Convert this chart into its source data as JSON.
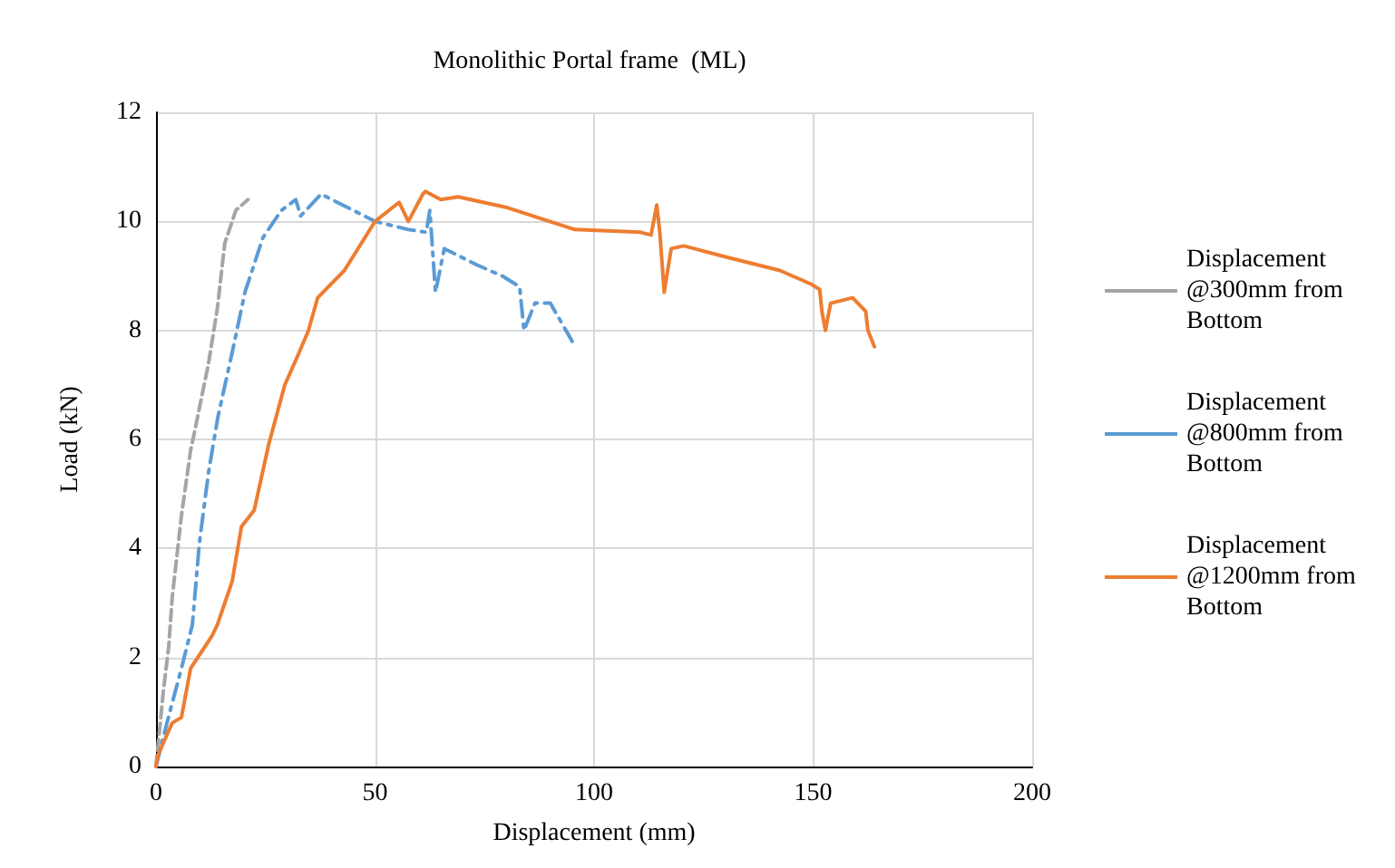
{
  "chart_data": {
    "type": "line",
    "title": "Monolithic Portal frame  (ML)",
    "xlabel": "Displacement (mm)",
    "ylabel": "Load (kN)",
    "xlim": [
      0,
      200
    ],
    "xticks": [
      0,
      50,
      100,
      150,
      200
    ],
    "ylim": [
      0,
      12
    ],
    "yticks": [
      0,
      2,
      4,
      6,
      8,
      10,
      12
    ],
    "grid": true,
    "legend": "right",
    "marker": "none",
    "series": [
      {
        "name": "Displacement @300mm from Bottom",
        "color": "#a5a5a5",
        "line_style": "dashed",
        "x": [
          0,
          1.7,
          2.9,
          3.7,
          5.8,
          7.9,
          8.7,
          12,
          14,
          15.7,
          17.4,
          18.2,
          21
        ],
        "values": [
          0,
          1.4,
          2.2,
          3.1,
          4.6,
          5.8,
          6.1,
          7.4,
          8.4,
          9.6,
          10.0,
          10.2,
          10.4
        ]
      },
      {
        "name": "Displacement @800mm from Bottom",
        "color": "#5b9bd5",
        "line_style": "dashdot",
        "x": [
          0,
          2.5,
          5.8,
          8.3,
          9.9,
          12,
          14.1,
          17.4,
          20.3,
          24.4,
          28.6,
          31.9,
          33,
          37.7,
          50,
          57.6,
          61.7,
          62.5,
          63.8,
          65.8,
          73.3,
          79,
          83,
          84,
          86.5,
          90,
          95
        ],
        "values": [
          0,
          0.8,
          1.8,
          2.6,
          4.1,
          5.4,
          6.4,
          7.6,
          8.7,
          9.7,
          10.2,
          10.4,
          10.1,
          10.5,
          10.0,
          9.85,
          9.8,
          10.2,
          8.7,
          9.5,
          9.2,
          9.0,
          8.8,
          8.0,
          8.5,
          8.5,
          7.8
        ]
      },
      {
        "name": "Displacement @1200mm from Bottom",
        "color": "#ed7d31",
        "line_style": "solid",
        "x": [
          0,
          0.4,
          3.7,
          5.8,
          7.9,
          12,
          12.8,
          14,
          17.4,
          19.5,
          22.4,
          25.7,
          29.4,
          32.7,
          34.8,
          36.9,
          43,
          50,
          55.5,
          57.6,
          60.9,
          61.5,
          65,
          69,
          80.3,
          95.6,
          110.6,
          113,
          114.3,
          115,
          116,
          117.6,
          120.5,
          130,
          142.4,
          149.5,
          151.5,
          152,
          152.8,
          154,
          159,
          162,
          162.5,
          164
        ],
        "values": [
          0,
          0.2,
          0.8,
          0.9,
          1.8,
          2.3,
          2.4,
          2.6,
          3.4,
          4.4,
          4.7,
          5.9,
          7.0,
          7.6,
          8.0,
          8.6,
          9.1,
          10.0,
          10.35,
          10.0,
          10.5,
          10.55,
          10.4,
          10.45,
          10.25,
          9.85,
          9.8,
          9.75,
          10.3,
          9.8,
          8.7,
          9.5,
          9.55,
          9.35,
          9.1,
          8.85,
          8.75,
          8.35,
          8.0,
          8.5,
          8.6,
          8.35,
          8.0,
          7.7
        ]
      }
    ]
  }
}
